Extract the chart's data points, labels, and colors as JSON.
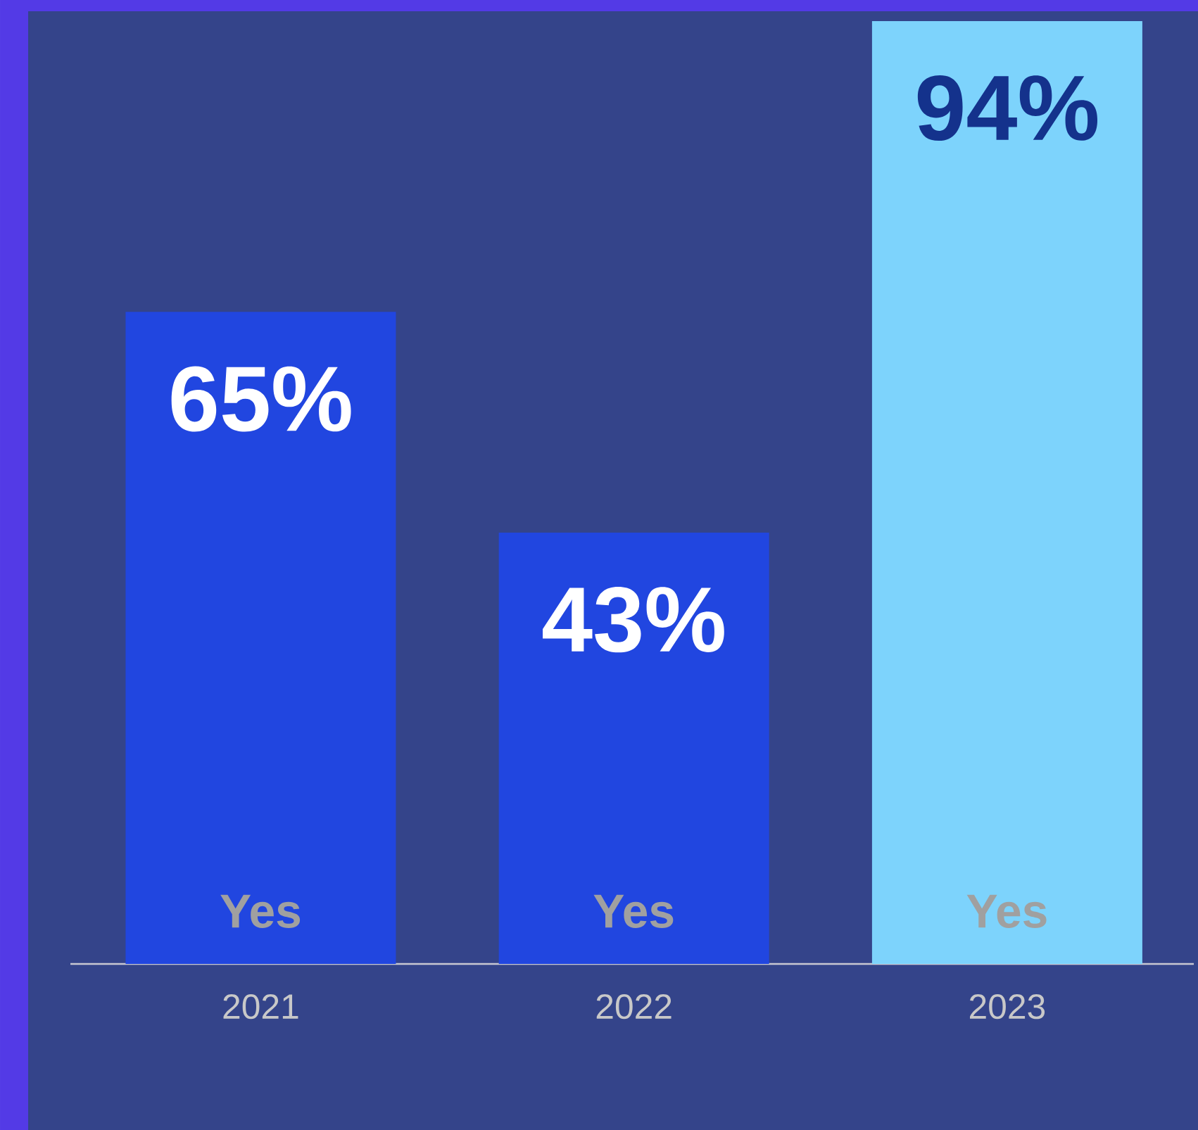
{
  "chart_data": {
    "type": "bar",
    "categories": [
      "2021",
      "2022",
      "2023"
    ],
    "values": [
      65,
      43,
      94
    ],
    "colors": [
      "#2146e0",
      "#2146e0",
      "#7dd3fc"
    ],
    "value_labels": [
      "65%",
      "43%",
      "94%"
    ],
    "annotations": [
      "Yes",
      "Yes",
      "Yes"
    ]
  }
}
